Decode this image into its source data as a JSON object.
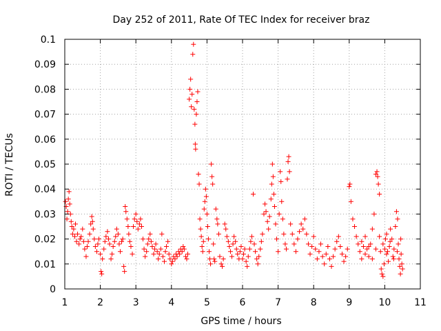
{
  "chart_data": {
    "type": "scatter",
    "title": "Day 252 of 2011, Rate Of TEC Index for receiver braz",
    "xlabel": "GPS time / hours",
    "ylabel": "ROTI / TECUs",
    "xlim": [
      1,
      11
    ],
    "ylim": [
      0,
      0.1
    ],
    "xticks": [
      1,
      2,
      3,
      4,
      5,
      6,
      7,
      8,
      9,
      10,
      11
    ],
    "yticks": [
      0,
      0.01,
      0.02,
      0.03,
      0.04,
      0.05,
      0.06,
      0.07,
      0.08,
      0.09,
      0.1
    ],
    "xtick_labels": [
      "1",
      "2",
      "3",
      "4",
      "5",
      "6",
      "7",
      "8",
      "9",
      "10",
      "11"
    ],
    "ytick_labels": [
      "0",
      "0.01",
      "0.02",
      "0.03",
      "0.04",
      "0.05",
      "0.06",
      "0.07",
      "0.08",
      "0.09",
      "0.1"
    ],
    "grid": true,
    "marker": "+",
    "color": "#ff0000",
    "series": [
      {
        "name": "ROTI",
        "points": [
          [
            1.02,
            0.035
          ],
          [
            1.04,
            0.033
          ],
          [
            1.06,
            0.028
          ],
          [
            1.08,
            0.031
          ],
          [
            1.1,
            0.036
          ],
          [
            1.12,
            0.039
          ],
          [
            1.14,
            0.034
          ],
          [
            1.16,
            0.03
          ],
          [
            1.18,
            0.027
          ],
          [
            1.2,
            0.025
          ],
          [
            1.22,
            0.022
          ],
          [
            1.25,
            0.024
          ],
          [
            1.28,
            0.021
          ],
          [
            1.3,
            0.026
          ],
          [
            1.33,
            0.019
          ],
          [
            1.36,
            0.022
          ],
          [
            1.4,
            0.018
          ],
          [
            1.43,
            0.02
          ],
          [
            1.46,
            0.021
          ],
          [
            1.5,
            0.024
          ],
          [
            1.53,
            0.019
          ],
          [
            1.56,
            0.016
          ],
          [
            1.6,
            0.013
          ],
          [
            1.63,
            0.017
          ],
          [
            1.66,
            0.019
          ],
          [
            1.7,
            0.022
          ],
          [
            1.73,
            0.026
          ],
          [
            1.76,
            0.029
          ],
          [
            1.78,
            0.027
          ],
          [
            1.8,
            0.024
          ],
          [
            1.83,
            0.02
          ],
          [
            1.86,
            0.017
          ],
          [
            1.9,
            0.015
          ],
          [
            1.93,
            0.018
          ],
          [
            1.96,
            0.02
          ],
          [
            2.0,
            0.014
          ],
          [
            2.02,
            0.007
          ],
          [
            2.04,
            0.006
          ],
          [
            2.06,
            0.012
          ],
          [
            2.1,
            0.016
          ],
          [
            2.13,
            0.019
          ],
          [
            2.16,
            0.021
          ],
          [
            2.2,
            0.023
          ],
          [
            2.23,
            0.02
          ],
          [
            2.26,
            0.018
          ],
          [
            2.3,
            0.012
          ],
          [
            2.33,
            0.014
          ],
          [
            2.36,
            0.017
          ],
          [
            2.4,
            0.019
          ],
          [
            2.43,
            0.021
          ],
          [
            2.46,
            0.024
          ],
          [
            2.5,
            0.022
          ],
          [
            2.53,
            0.018
          ],
          [
            2.56,
            0.015
          ],
          [
            2.6,
            0.019
          ],
          [
            2.63,
            0.02
          ],
          [
            2.66,
            0.009
          ],
          [
            2.68,
            0.007
          ],
          [
            2.7,
            0.033
          ],
          [
            2.72,
            0.031
          ],
          [
            2.75,
            0.028
          ],
          [
            2.78,
            0.025
          ],
          [
            2.8,
            0.022
          ],
          [
            2.83,
            0.019
          ],
          [
            2.86,
            0.017
          ],
          [
            2.9,
            0.014
          ],
          [
            2.93,
            0.025
          ],
          [
            2.96,
            0.028
          ],
          [
            3.0,
            0.03
          ],
          [
            3.03,
            0.027
          ],
          [
            3.06,
            0.024
          ],
          [
            3.1,
            0.026
          ],
          [
            3.13,
            0.028
          ],
          [
            3.16,
            0.025
          ],
          [
            3.2,
            0.02
          ],
          [
            3.23,
            0.016
          ],
          [
            3.26,
            0.013
          ],
          [
            3.3,
            0.015
          ],
          [
            3.33,
            0.018
          ],
          [
            3.36,
            0.02
          ],
          [
            3.4,
            0.022
          ],
          [
            3.43,
            0.019
          ],
          [
            3.46,
            0.017
          ],
          [
            3.5,
            0.014
          ],
          [
            3.53,
            0.016
          ],
          [
            3.56,
            0.018
          ],
          [
            3.6,
            0.015
          ],
          [
            3.63,
            0.012
          ],
          [
            3.66,
            0.014
          ],
          [
            3.7,
            0.016
          ],
          [
            3.73,
            0.022
          ],
          [
            3.76,
            0.013
          ],
          [
            3.8,
            0.011
          ],
          [
            3.83,
            0.015
          ],
          [
            3.86,
            0.017
          ],
          [
            3.9,
            0.019
          ],
          [
            3.93,
            0.014
          ],
          [
            3.96,
            0.012
          ],
          [
            4.0,
            0.01
          ],
          [
            4.03,
            0.011
          ],
          [
            4.06,
            0.013
          ],
          [
            4.1,
            0.012
          ],
          [
            4.13,
            0.014
          ],
          [
            4.16,
            0.013
          ],
          [
            4.2,
            0.015
          ],
          [
            4.23,
            0.014
          ],
          [
            4.26,
            0.016
          ],
          [
            4.3,
            0.015
          ],
          [
            4.33,
            0.017
          ],
          [
            4.36,
            0.016
          ],
          [
            4.4,
            0.013
          ],
          [
            4.43,
            0.012
          ],
          [
            4.46,
            0.014
          ],
          [
            4.5,
            0.076
          ],
          [
            4.52,
            0.08
          ],
          [
            4.54,
            0.084
          ],
          [
            4.56,
            0.073
          ],
          [
            4.58,
            0.078
          ],
          [
            4.6,
            0.094
          ],
          [
            4.62,
            0.098
          ],
          [
            4.64,
            0.072
          ],
          [
            4.66,
            0.066
          ],
          [
            4.67,
            0.058
          ],
          [
            4.68,
            0.056
          ],
          [
            4.7,
            0.07
          ],
          [
            4.72,
            0.075
          ],
          [
            4.74,
            0.079
          ],
          [
            4.76,
            0.046
          ],
          [
            4.78,
            0.042
          ],
          [
            4.8,
            0.028
          ],
          [
            4.82,
            0.024
          ],
          [
            4.84,
            0.021
          ],
          [
            4.86,
            0.017
          ],
          [
            4.88,
            0.015
          ],
          [
            4.9,
            0.019
          ],
          [
            4.92,
            0.032
          ],
          [
            4.94,
            0.035
          ],
          [
            4.96,
            0.04
          ],
          [
            4.98,
            0.037
          ],
          [
            5.0,
            0.03
          ],
          [
            5.02,
            0.025
          ],
          [
            5.04,
            0.02
          ],
          [
            5.06,
            0.015
          ],
          [
            5.08,
            0.012
          ],
          [
            5.1,
            0.01
          ],
          [
            5.12,
            0.05
          ],
          [
            5.14,
            0.045
          ],
          [
            5.16,
            0.042
          ],
          [
            5.18,
            0.018
          ],
          [
            5.2,
            0.012
          ],
          [
            5.22,
            0.011
          ],
          [
            5.25,
            0.032
          ],
          [
            5.28,
            0.028
          ],
          [
            5.3,
            0.026
          ],
          [
            5.33,
            0.022
          ],
          [
            5.36,
            0.013
          ],
          [
            5.4,
            0.01
          ],
          [
            5.43,
            0.009
          ],
          [
            5.46,
            0.012
          ],
          [
            5.5,
            0.026
          ],
          [
            5.53,
            0.024
          ],
          [
            5.56,
            0.021
          ],
          [
            5.6,
            0.019
          ],
          [
            5.63,
            0.017
          ],
          [
            5.66,
            0.015
          ],
          [
            5.7,
            0.013
          ],
          [
            5.73,
            0.018
          ],
          [
            5.76,
            0.021
          ],
          [
            5.8,
            0.019
          ],
          [
            5.83,
            0.016
          ],
          [
            5.86,
            0.014
          ],
          [
            5.9,
            0.012
          ],
          [
            5.93,
            0.015
          ],
          [
            5.96,
            0.017
          ],
          [
            6.0,
            0.012
          ],
          [
            6.03,
            0.014
          ],
          [
            6.06,
            0.016
          ],
          [
            6.1,
            0.011
          ],
          [
            6.13,
            0.009
          ],
          [
            6.16,
            0.013
          ],
          [
            6.2,
            0.016
          ],
          [
            6.23,
            0.019
          ],
          [
            6.26,
            0.021
          ],
          [
            6.3,
            0.038
          ],
          [
            6.33,
            0.018
          ],
          [
            6.36,
            0.015
          ],
          [
            6.4,
            0.012
          ],
          [
            6.43,
            0.01
          ],
          [
            6.46,
            0.013
          ],
          [
            6.5,
            0.016
          ],
          [
            6.53,
            0.019
          ],
          [
            6.56,
            0.022
          ],
          [
            6.6,
            0.03
          ],
          [
            6.63,
            0.034
          ],
          [
            6.66,
            0.031
          ],
          [
            6.7,
            0.027
          ],
          [
            6.73,
            0.024
          ],
          [
            6.76,
            0.029
          ],
          [
            6.8,
            0.036
          ],
          [
            6.82,
            0.042
          ],
          [
            6.84,
            0.05
          ],
          [
            6.86,
            0.045
          ],
          [
            6.88,
            0.038
          ],
          [
            6.9,
            0.033
          ],
          [
            6.93,
            0.026
          ],
          [
            6.96,
            0.02
          ],
          [
            7.0,
            0.015
          ],
          [
            7.03,
            0.03
          ],
          [
            7.06,
            0.047
          ],
          [
            7.08,
            0.043
          ],
          [
            7.1,
            0.035
          ],
          [
            7.13,
            0.028
          ],
          [
            7.16,
            0.022
          ],
          [
            7.2,
            0.018
          ],
          [
            7.23,
            0.016
          ],
          [
            7.26,
            0.044
          ],
          [
            7.28,
            0.051
          ],
          [
            7.3,
            0.053
          ],
          [
            7.32,
            0.047
          ],
          [
            7.35,
            0.026
          ],
          [
            7.4,
            0.022
          ],
          [
            7.45,
            0.018
          ],
          [
            7.5,
            0.015
          ],
          [
            7.55,
            0.02
          ],
          [
            7.6,
            0.023
          ],
          [
            7.65,
            0.026
          ],
          [
            7.7,
            0.024
          ],
          [
            7.75,
            0.028
          ],
          [
            7.8,
            0.022
          ],
          [
            7.85,
            0.018
          ],
          [
            7.9,
            0.014
          ],
          [
            7.95,
            0.017
          ],
          [
            8.0,
            0.021
          ],
          [
            8.05,
            0.016
          ],
          [
            8.1,
            0.012
          ],
          [
            8.15,
            0.015
          ],
          [
            8.2,
            0.018
          ],
          [
            8.25,
            0.013
          ],
          [
            8.3,
            0.01
          ],
          [
            8.35,
            0.014
          ],
          [
            8.4,
            0.017
          ],
          [
            8.45,
            0.012
          ],
          [
            8.5,
            0.009
          ],
          [
            8.55,
            0.013
          ],
          [
            8.6,
            0.016
          ],
          [
            8.65,
            0.019
          ],
          [
            8.7,
            0.021
          ],
          [
            8.75,
            0.017
          ],
          [
            8.8,
            0.014
          ],
          [
            8.85,
            0.011
          ],
          [
            8.9,
            0.013
          ],
          [
            8.95,
            0.016
          ],
          [
            9.0,
            0.041
          ],
          [
            9.02,
            0.042
          ],
          [
            9.05,
            0.035
          ],
          [
            9.1,
            0.028
          ],
          [
            9.15,
            0.025
          ],
          [
            9.2,
            0.021
          ],
          [
            9.25,
            0.018
          ],
          [
            9.3,
            0.015
          ],
          [
            9.35,
            0.012
          ],
          [
            9.4,
            0.017
          ],
          [
            9.45,
            0.021
          ],
          [
            9.5,
            0.016
          ],
          [
            9.55,
            0.013
          ],
          [
            9.6,
            0.018
          ],
          [
            9.65,
            0.024
          ],
          [
            9.7,
            0.03
          ],
          [
            9.75,
            0.046
          ],
          [
            9.78,
            0.047
          ],
          [
            9.8,
            0.045
          ],
          [
            9.82,
            0.042
          ],
          [
            9.85,
            0.038
          ],
          [
            9.88,
            0.015
          ],
          [
            9.9,
            0.008
          ],
          [
            9.92,
            0.006
          ],
          [
            9.95,
            0.005
          ],
          [
            9.98,
            0.01
          ],
          [
            10.0,
            0.016
          ],
          [
            10.02,
            0.02
          ],
          [
            10.05,
            0.022
          ],
          [
            10.08,
            0.015
          ],
          [
            10.1,
            0.011
          ],
          [
            10.13,
            0.017
          ],
          [
            10.16,
            0.024
          ],
          [
            10.2,
            0.02
          ],
          [
            10.23,
            0.013
          ],
          [
            10.26,
            0.016
          ],
          [
            10.3,
            0.025
          ],
          [
            10.33,
            0.031
          ],
          [
            10.36,
            0.028
          ],
          [
            10.38,
            0.018
          ],
          [
            10.4,
            0.012
          ],
          [
            10.42,
            0.009
          ],
          [
            10.44,
            0.006
          ],
          [
            10.46,
            0.014
          ],
          [
            10.48,
            0.01
          ],
          [
            10.5,
            0.008
          ],
          [
            10.45,
            0.02
          ],
          [
            10.35,
            0.015
          ],
          [
            10.25,
            0.012
          ],
          [
            10.15,
            0.019
          ],
          [
            10.05,
            0.014
          ],
          [
            9.95,
            0.018
          ],
          [
            9.85,
            0.021
          ],
          [
            9.75,
            0.016
          ],
          [
            9.65,
            0.012
          ],
          [
            9.55,
            0.017
          ],
          [
            9.45,
            0.014
          ],
          [
            9.35,
            0.019
          ]
        ]
      }
    ]
  }
}
